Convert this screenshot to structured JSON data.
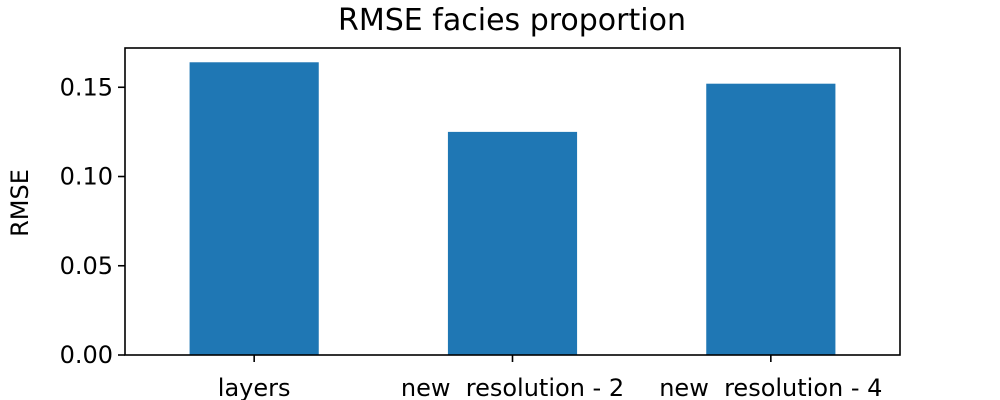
{
  "chart_data": {
    "type": "bar",
    "title": "RMSE facies proportion",
    "xlabel": "",
    "ylabel": "RMSE",
    "categories": [
      "layers",
      "new  resolution - 2",
      "new  resolution - 4"
    ],
    "values": [
      0.164,
      0.125,
      0.152
    ],
    "ylim": [
      0,
      0.172
    ],
    "yticks": [
      0.0,
      0.05,
      0.1,
      0.15
    ],
    "ytick_labels": [
      "0.00",
      "0.05",
      "0.10",
      "0.15"
    ],
    "bar_color": "#1f77b4",
    "grid": false,
    "legend": "none"
  }
}
